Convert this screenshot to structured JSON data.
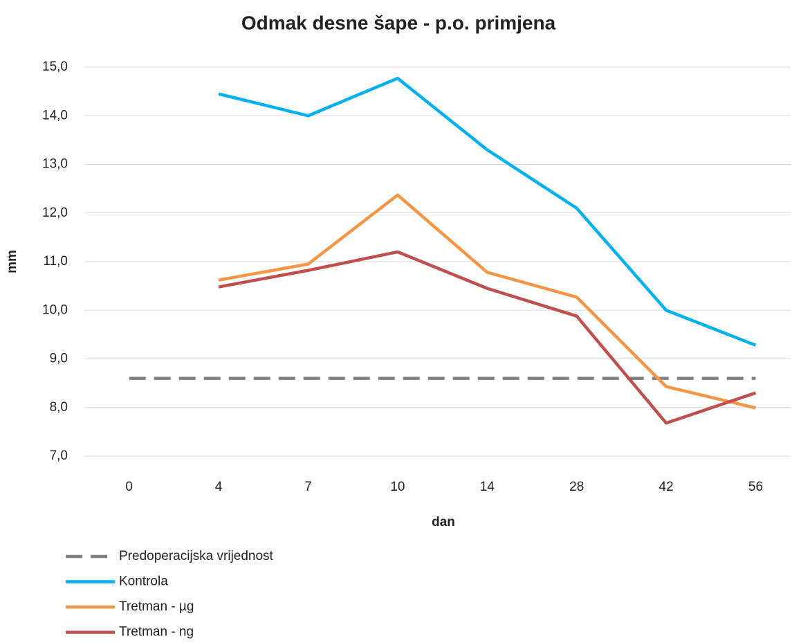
{
  "chart_data": {
    "type": "line",
    "title": "Odmak desne šape - p.o. primjena",
    "x_label": "dan",
    "y_label": "mm",
    "categories": [
      "0",
      "4",
      "7",
      "10",
      "14",
      "28",
      "42",
      "56"
    ],
    "series": [
      {
        "name": "Predoperacijska vrijednost",
        "color": "#808080",
        "dashed": true,
        "values": [
          8.6,
          8.6,
          8.6,
          8.6,
          8.6,
          8.6,
          8.6,
          8.6
        ]
      },
      {
        "name": "Kontrola",
        "color": "#00b0f0",
        "values": [
          null,
          14.45,
          14.0,
          14.77,
          13.3,
          12.1,
          10.0,
          9.28
        ]
      },
      {
        "name": "Tretman - µg",
        "color": "#f79646",
        "values": [
          null,
          10.62,
          10.95,
          12.37,
          10.78,
          10.27,
          8.43,
          7.99
        ]
      },
      {
        "name": "Tretman - ng",
        "color": "#c0504d",
        "values": [
          null,
          10.48,
          10.82,
          11.2,
          10.45,
          9.88,
          7.68,
          8.3
        ]
      }
    ],
    "ylim": [
      7,
      15
    ],
    "yticks": [
      {
        "value": 7,
        "label": "7,0"
      },
      {
        "value": 8,
        "label": "8,0"
      },
      {
        "value": 9,
        "label": "9,0"
      },
      {
        "value": 10,
        "label": "10,0"
      },
      {
        "value": 11,
        "label": "11,0"
      },
      {
        "value": 12,
        "label": "12,0"
      },
      {
        "value": 13,
        "label": "13,0"
      },
      {
        "value": 14,
        "label": "14,0"
      },
      {
        "value": 15,
        "label": "15,0"
      }
    ],
    "grid": true,
    "legend": "bottom-left"
  }
}
